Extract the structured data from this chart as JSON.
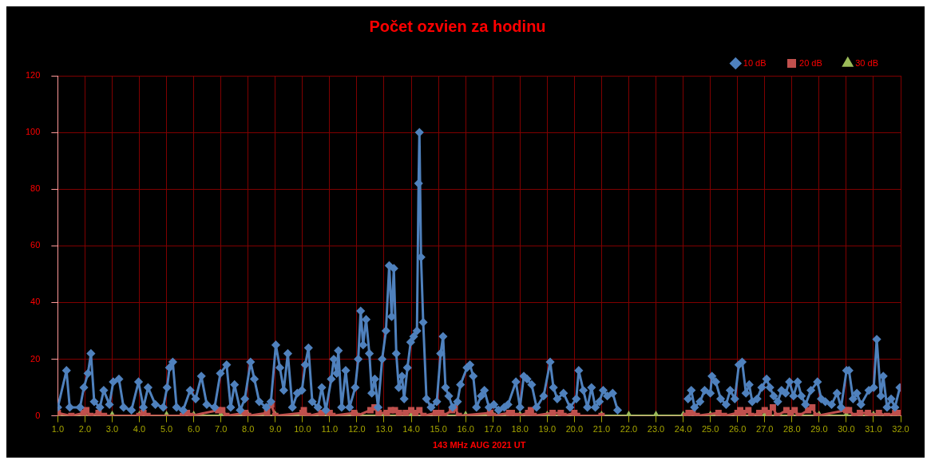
{
  "chart_data": {
    "type": "line",
    "title": "Počet ozvien za hodinu",
    "xlabel": "143 MHz AUG 2021 UT",
    "xlim": [
      1,
      32
    ],
    "xticks": [
      {
        "value": 1,
        "label": "1.0"
      },
      {
        "value": 2,
        "label": "2.0"
      },
      {
        "value": 3,
        "label": "3.0"
      },
      {
        "value": 4,
        "label": "4.0"
      },
      {
        "value": 5,
        "label": "5.0"
      },
      {
        "value": 6,
        "label": "6.0"
      },
      {
        "value": 7,
        "label": "7.0"
      },
      {
        "value": 8,
        "label": "8.0"
      },
      {
        "value": 9,
        "label": "9.0"
      },
      {
        "value": 10,
        "label": "10.0"
      },
      {
        "value": 11,
        "label": "11.0"
      },
      {
        "value": 12,
        "label": "12.0"
      },
      {
        "value": 13,
        "label": "13.0"
      },
      {
        "value": 14,
        "label": "14.0"
      },
      {
        "value": 15,
        "label": "15.0"
      },
      {
        "value": 16,
        "label": "16.0"
      },
      {
        "value": 17,
        "label": "17.0"
      },
      {
        "value": 18,
        "label": "18.0"
      },
      {
        "value": 19,
        "label": "19.0"
      },
      {
        "value": 20,
        "label": "20.0"
      },
      {
        "value": 21,
        "label": "21.0"
      },
      {
        "value": 22,
        "label": "22.0"
      },
      {
        "value": 23,
        "label": "23.0"
      },
      {
        "value": 24,
        "label": "24.0"
      },
      {
        "value": 25,
        "label": "25.0"
      },
      {
        "value": 26,
        "label": "26.0"
      },
      {
        "value": 27,
        "label": "27.0"
      },
      {
        "value": 28,
        "label": "28.0"
      },
      {
        "value": 29,
        "label": "29.0"
      },
      {
        "value": 30,
        "label": "30.0"
      },
      {
        "value": 31,
        "label": "31.0"
      },
      {
        "value": 32,
        "label": "32.0"
      }
    ],
    "ylim": [
      0,
      120
    ],
    "yticks": [
      0,
      20,
      40,
      60,
      80,
      100,
      120
    ],
    "grid": true,
    "legend": "top right",
    "series": [
      {
        "name": "10 dB",
        "color": "#4f81bd",
        "marker": "diamond",
        "x": [
          1.0,
          1.32,
          1.44,
          1.82,
          1.96,
          2.11,
          2.22,
          2.34,
          2.55,
          2.69,
          2.9,
          3.04,
          3.25,
          3.42,
          3.71,
          3.97,
          4.15,
          4.32,
          4.59,
          4.88,
          5.02,
          5.11,
          5.23,
          5.37,
          5.61,
          5.87,
          6.07,
          6.28,
          6.48,
          6.77,
          6.98,
          7.21,
          7.36,
          7.5,
          7.71,
          7.88,
          8.09,
          8.23,
          8.41,
          8.67,
          8.84,
          9.02,
          9.17,
          9.31,
          9.46,
          9.63,
          9.81,
          9.98,
          10.1,
          10.22,
          10.36,
          10.57,
          10.71,
          10.86,
          11.06,
          11.15,
          11.26,
          11.32,
          11.44,
          11.59,
          11.73,
          11.94,
          12.05,
          12.14,
          12.23,
          12.34,
          12.46,
          12.55,
          12.66,
          12.78,
          12.93,
          13.07,
          13.19,
          13.28,
          13.36,
          13.45,
          13.54,
          13.66,
          13.74,
          13.86,
          13.98,
          14.09,
          14.21,
          14.27,
          14.3,
          14.36,
          14.44,
          14.56,
          14.73,
          14.94,
          15.08,
          15.17,
          15.26,
          15.38,
          15.52,
          15.7,
          15.81,
          16.05,
          16.16,
          16.28,
          16.4,
          16.57,
          16.69,
          16.86,
          17.04,
          17.21,
          17.42,
          17.56,
          17.85,
          18.0,
          18.14,
          18.26,
          18.43,
          18.61,
          18.87,
          19.11,
          19.23,
          19.37,
          19.6,
          19.84,
          20.07,
          20.16,
          20.33,
          20.48,
          20.63,
          20.77,
          20.92,
          21.06,
          21.21,
          21.41,
          21.59,
          23.0,
          24.18,
          24.3,
          24.42,
          24.62,
          24.79,
          25.0,
          25.06,
          25.2,
          25.38,
          25.58,
          25.73,
          25.9,
          26.05,
          26.17,
          26.31,
          26.43,
          26.54,
          26.72,
          26.89,
          27.07,
          27.19,
          27.33,
          27.48,
          27.62,
          27.77,
          27.91,
          28.06,
          28.21,
          28.35,
          28.5,
          28.7,
          28.94,
          29.08,
          29.23,
          29.46,
          29.66,
          29.81,
          30.01,
          30.1,
          30.25,
          30.39,
          30.54,
          30.83,
          31.01,
          31.12,
          31.27,
          31.36,
          31.5,
          31.65,
          31.79,
          31.97
        ],
        "values": [
          3,
          16,
          3,
          3,
          10,
          15,
          22,
          5,
          3,
          9,
          4,
          12,
          13,
          3,
          2,
          12,
          3,
          10,
          4,
          3,
          10,
          17,
          19,
          3,
          2,
          9,
          6,
          14,
          4,
          3,
          15,
          18,
          3,
          11,
          2,
          6,
          19,
          13,
          5,
          3,
          5,
          25,
          17,
          9,
          22,
          3,
          8,
          9,
          18,
          24,
          5,
          3,
          10,
          2,
          13,
          20,
          15,
          23,
          3,
          16,
          3,
          10,
          20,
          37,
          25,
          34,
          22,
          8,
          13,
          3,
          20,
          30,
          53,
          35,
          52,
          22,
          10,
          14,
          6,
          17,
          26,
          28,
          30,
          82,
          100,
          56,
          33,
          6,
          3,
          5,
          22,
          28,
          10,
          7,
          3,
          5,
          11,
          17,
          18,
          14,
          3,
          7,
          9,
          3,
          4,
          2,
          3,
          4,
          12,
          3,
          14,
          13,
          11,
          3,
          7,
          19,
          10,
          6,
          8,
          3,
          6,
          16,
          9,
          3,
          10,
          3,
          5,
          9,
          7,
          8,
          2,
          null,
          6,
          9,
          3,
          5,
          9,
          8,
          14,
          12,
          6,
          4,
          9,
          6,
          18,
          19,
          8,
          11,
          5,
          6,
          10,
          13,
          10,
          7,
          5,
          9,
          8,
          12,
          7,
          12,
          7,
          4,
          9,
          12,
          6,
          5,
          4,
          8,
          3,
          16,
          16,
          6,
          8,
          4,
          9,
          10,
          27,
          7,
          14,
          3,
          6,
          3,
          10
        ]
      },
      {
        "name": "20 dB",
        "color": "#c0504d",
        "marker": "square",
        "x": [
          1.0,
          1.5,
          1.95,
          2.05,
          2.2,
          2.5,
          2.7,
          4.0,
          4.15,
          4.3,
          5.6,
          5.75,
          5.9,
          6.9,
          7.05,
          7.2,
          7.9,
          8.0,
          8.7,
          8.85,
          9.0,
          10.0,
          10.05,
          10.2,
          10.7,
          11.0,
          11.1,
          11.9,
          12.0,
          12.5,
          12.65,
          12.8,
          13.1,
          13.25,
          13.4,
          13.55,
          13.8,
          14.0,
          14.15,
          14.3,
          14.45,
          14.9,
          15.1,
          15.2,
          15.5,
          15.6,
          15.75,
          16.9,
          17.0,
          17.6,
          17.7,
          17.9,
          18.3,
          18.4,
          18.5,
          19.2,
          19.5,
          19.6,
          20.0,
          20.1,
          21.0,
          22.5,
          24.1,
          24.2,
          24.35,
          24.5,
          25.3,
          25.5,
          26.0,
          26.1,
          26.2,
          26.4,
          26.5,
          26.8,
          27.0,
          27.15,
          27.3,
          27.45,
          27.8,
          27.95,
          28.1,
          28.25,
          28.6,
          28.75,
          28.9,
          30.0,
          30.1,
          30.3,
          30.5,
          30.8,
          30.9,
          31.2,
          31.5,
          31.8,
          32.0
        ],
        "values": [
          1,
          0,
          1,
          2,
          0,
          1,
          0,
          0,
          1,
          0,
          0,
          1,
          0,
          2,
          2,
          0,
          1,
          0,
          1,
          4,
          0,
          1,
          2,
          0,
          1,
          1,
          0,
          1,
          0,
          2,
          3,
          1,
          1,
          2,
          2,
          1,
          1,
          2,
          1,
          2,
          0,
          1,
          1,
          0,
          2,
          3,
          0,
          1,
          0,
          1,
          1,
          0,
          1,
          2,
          0,
          1,
          1,
          0,
          1,
          0,
          0,
          null,
          0,
          1,
          1,
          0,
          1,
          0,
          1,
          2,
          1,
          2,
          0,
          1,
          2,
          1,
          3,
          0,
          2,
          1,
          2,
          0,
          2,
          3,
          0,
          2,
          2,
          0,
          1,
          1,
          0,
          1,
          0,
          1,
          1
        ]
      },
      {
        "name": "30 dB",
        "color": "#9bbb59",
        "marker": "triangle",
        "x": [
          1,
          2,
          3,
          4,
          5,
          6,
          7,
          8,
          9,
          10,
          11,
          12,
          13,
          14,
          15,
          16,
          17,
          18,
          19,
          20,
          21,
          22,
          23,
          24,
          25,
          26,
          27,
          28,
          29,
          30,
          31,
          32
        ],
        "values": [
          0,
          0,
          0,
          0,
          0,
          0,
          0,
          0,
          0,
          0,
          0,
          0,
          0,
          0,
          0,
          0,
          0,
          0,
          0,
          0,
          0,
          0,
          0,
          0,
          0,
          0,
          0,
          0,
          0,
          0,
          0,
          0
        ]
      }
    ]
  }
}
